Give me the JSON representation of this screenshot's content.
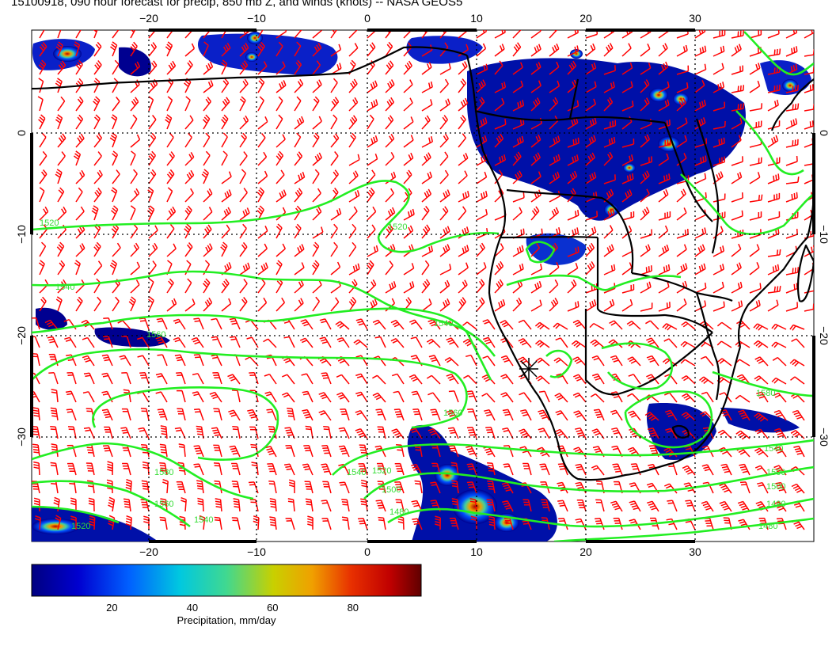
{
  "title": "15100918, 090 hour forecast for precip, 850 mb Z, and winds (knots) -- NASA GEOS5",
  "map": {
    "lon_range": [
      -30,
      41
    ],
    "lat_range": [
      -41,
      9
    ],
    "lon_grid": [
      -20,
      -10,
      0,
      10,
      20,
      30
    ],
    "lat_grid": [
      0,
      -10,
      -20,
      -30
    ],
    "lon_tick_labels": [
      "−20",
      "−10",
      "0",
      "10",
      "20",
      "30"
    ],
    "lat_tick_labels": [
      "0",
      "−10",
      "−20",
      "−30"
    ],
    "grid": true,
    "colors": {
      "contour": "#22ee22",
      "wind_barb": "#ff0000",
      "coast": "#000000",
      "grid": "#000000"
    }
  },
  "contours": {
    "labels": [
      "1520",
      "1520",
      "1540",
      "1540",
      "1560",
      "1560",
      "1540",
      "1520",
      "1500",
      "1480",
      "1540",
      "1560",
      "1580",
      "1520",
      "1480",
      "1500",
      "1480",
      "1540",
      "1500",
      "1580"
    ]
  },
  "colorbar": {
    "min": 0,
    "max": 97,
    "ticks": [
      "20",
      "40",
      "60",
      "80"
    ],
    "tick_values": [
      20,
      40,
      60,
      80
    ],
    "label": "Precipitation, mm/day"
  }
}
